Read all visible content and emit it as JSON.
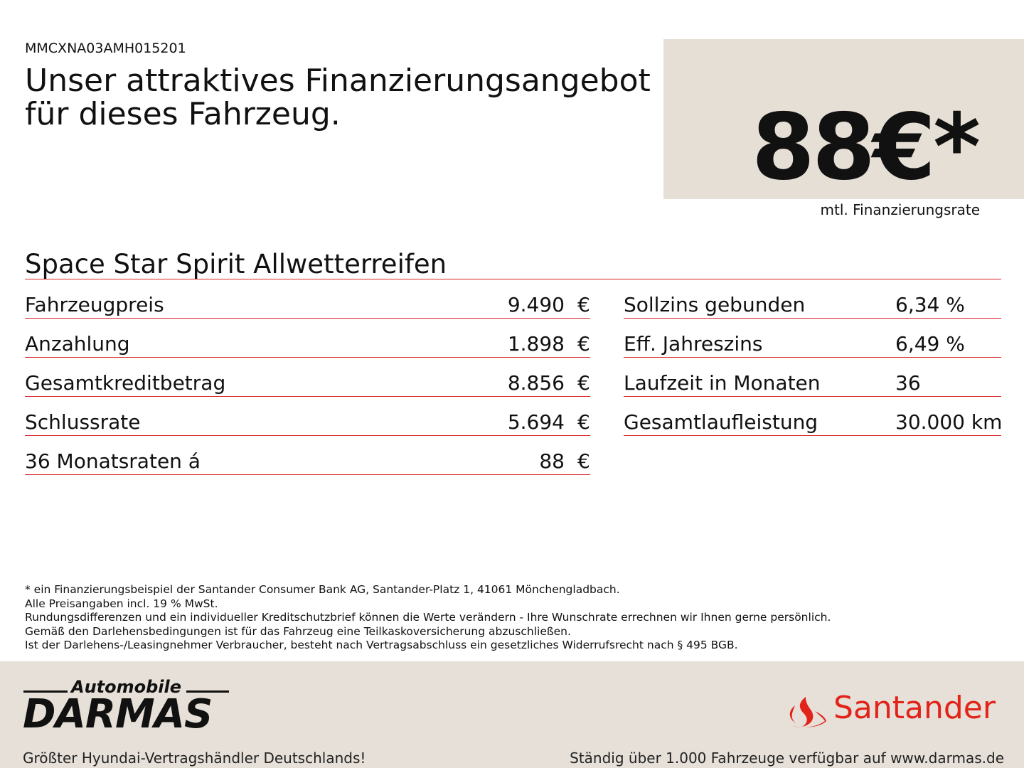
{
  "header": {
    "code": "MMCXNA03AMH015201",
    "title": [
      "Unser attraktives Finanzierungsangebot",
      "für dieses Fahrzeug."
    ]
  },
  "price": {
    "amount": "88€*",
    "label": "mtl. Finanzierungsrate"
  },
  "model": "Space Star Spirit Allwetterreifen",
  "table_left": {
    "rows": [
      [
        "Fahrzeugpreis",
        "9.490",
        "€"
      ],
      [
        "Anzahlung",
        "1.898",
        "€"
      ],
      [
        "Gesamtkreditbetrag",
        "8.856",
        "€"
      ],
      [
        "Schlussrate",
        "5.694",
        "€"
      ],
      [
        "36 Monatsraten á",
        "88",
        "€"
      ]
    ]
  },
  "table_right": {
    "rows": [
      [
        "Sollzins gebunden",
        "6,34 %"
      ],
      [
        "Eff. Jahreszins",
        "6,49 %"
      ],
      [
        "Laufzeit in Monaten",
        "36"
      ],
      [
        "Gesamtlaufleistung",
        "30.000 km"
      ]
    ]
  },
  "footnotes": [
    "* ein Finanzierungsbeispiel der Santander Consumer Bank AG, Santander-Platz 1, 41061 Mönchengladbach.",
    "Alle Preisangaben incl. 19 % MwSt.",
    "Rundungsdifferenzen und ein individueller Kreditschutzbrief können die Werte verändern - Ihre Wunschrate errechnen wir Ihnen gerne persönlich.",
    "Gemäß den Darlehensbedingungen ist für das Fahrzeug eine Teilkaskoversicherung abzuschließen.",
    "Ist der Darlehens-/Leasingnehmer Verbraucher, besteht nach Vertragsabschluss ein gesetzliches Widerrufsrecht nach § 495 BGB."
  ],
  "footer": {
    "dealer_prefix": "Automobile",
    "dealer_name": "DARMAS",
    "dealer_slogan": "Größter Hyundai-Vertragshändler Deutschlands!",
    "bank": "Santander",
    "stock_note": "Ständig über 1.000 Fahrzeuge verfügbar auf www.darmas.de"
  }
}
